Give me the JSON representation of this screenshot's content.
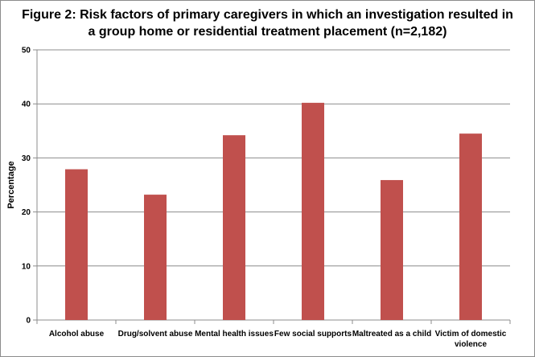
{
  "chart_data": {
    "type": "bar",
    "title_lines": [
      "Figure 2: Risk factors of primary caregivers in which an investigation resulted in",
      "a group home or residential treatment placement (n=2,182)"
    ],
    "ylabel": "Percentage",
    "xlabel": "",
    "ylim": [
      0,
      50
    ],
    "yticks": [
      "0",
      "10",
      "20",
      "30",
      "40",
      "50"
    ],
    "categories": [
      [
        "Alcohol abuse"
      ],
      [
        "Drug/solvent abuse"
      ],
      [
        "Mental health issues"
      ],
      [
        "Few social supports"
      ],
      [
        "Maltreated as a child"
      ],
      [
        "Victim of domestic",
        "violence"
      ]
    ],
    "values": [
      27.9,
      23.2,
      34.2,
      40.2,
      25.9,
      34.5
    ],
    "grid": true,
    "colors": {
      "bar": "#c0504d",
      "grid": "#8c8c8c",
      "axis": "#8c8c8c"
    }
  }
}
